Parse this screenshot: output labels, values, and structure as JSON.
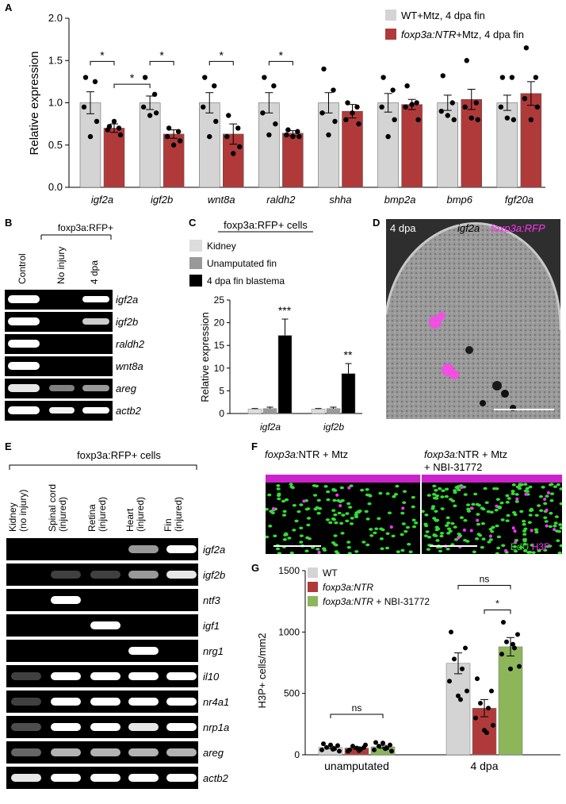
{
  "panels": {
    "A": "A",
    "B": "B",
    "C": "C",
    "D": "D",
    "E": "E",
    "F": "F",
    "G": "G"
  },
  "colors": {
    "wt": "#d4d4d4",
    "ntr": "#b03a3a",
    "nbi": "#8db55a",
    "kidney": "#dddddd",
    "unamp": "#999999",
    "blastema": "#000000",
    "edu": "#33dd33",
    "h3p": "#ff33ff"
  },
  "chart_data": [
    {
      "panel": "A",
      "type": "bar",
      "ylabel": "Relative expression",
      "ylim": [
        0,
        2.0
      ],
      "yticks": [
        "0.0",
        "0.5",
        "1.0",
        "1.5",
        "2.0"
      ],
      "categories": [
        "igf2a",
        "igf2b",
        "wnt8a",
        "raldh2",
        "shha",
        "bmp2a",
        "bmp6",
        "fgf20a"
      ],
      "series": [
        {
          "name": "WT+Mtz, 4 dpa fin",
          "values": [
            1.0,
            1.0,
            1.0,
            1.0,
            1.0,
            1.0,
            1.0,
            1.0
          ],
          "errors": [
            0.13,
            0.08,
            0.12,
            0.12,
            0.12,
            0.11,
            0.09,
            0.09
          ]
        },
        {
          "name_italic": "foxp3a:NTR",
          "name": "+Mtz, 4 dpa fin",
          "values": [
            0.7,
            0.63,
            0.63,
            0.64,
            0.9,
            0.98,
            1.04,
            1.11
          ],
          "errors": [
            0.05,
            0.05,
            0.12,
            0.03,
            0.08,
            0.06,
            0.12,
            0.14
          ]
        }
      ],
      "points": [
        [
          [
            1.3,
            1.25,
            0.95,
            0.78,
            0.6
          ],
          [
            0.72,
            0.7,
            0.68,
            0.62,
            0.78
          ]
        ],
        [
          [
            1.3,
            1.1,
            0.95,
            0.88,
            0.85
          ],
          [
            0.7,
            0.66,
            0.6,
            0.55,
            0.5
          ]
        ],
        [
          [
            1.3,
            1.2,
            0.95,
            0.78,
            0.6
          ],
          [
            0.85,
            0.7,
            0.6,
            0.48,
            0.4
          ]
        ],
        [
          [
            1.3,
            1.2,
            0.88,
            0.75,
            0.62
          ],
          [
            0.68,
            0.66,
            0.62,
            0.6,
            0.6
          ]
        ],
        [
          [
            1.4,
            1.15,
            0.88,
            0.78,
            0.62
          ],
          [
            1.0,
            0.95,
            0.8,
            0.75,
            0.88
          ]
        ],
        [
          [
            1.3,
            1.15,
            0.95,
            0.8,
            0.6
          ],
          [
            1.2,
            1.0,
            0.95,
            0.8,
            0.98
          ]
        ],
        [
          [
            1.32,
            1.0,
            0.9,
            0.8,
            0.85
          ],
          [
            1.5,
            1.0,
            0.95,
            0.8,
            0.82
          ]
        ],
        [
          [
            1.3,
            1.3,
            0.95,
            0.8,
            0.82
          ],
          [
            1.65,
            1.3,
            1.05,
            0.95,
            0.8
          ]
        ]
      ],
      "sig": [
        "*",
        "*",
        "*",
        "*",
        "*"
      ]
    },
    {
      "panel": "C",
      "type": "bar",
      "title": "foxp3a:RFP+ cells",
      "ylabel": "Relative expression",
      "ylim": [
        0,
        25
      ],
      "yticks": [
        "0",
        "5",
        "10",
        "15",
        "20",
        "25"
      ],
      "categories": [
        "igf2a",
        "igf2b"
      ],
      "series": [
        {
          "name": "Kidney",
          "values": [
            1.0,
            1.0
          ],
          "errors": [
            0.1,
            0.1
          ]
        },
        {
          "name": "Unamputated fin",
          "values": [
            1.1,
            1.1
          ],
          "errors": [
            0.3,
            0.3
          ]
        },
        {
          "name": "4 dpa fin blastema",
          "values": [
            17.2,
            8.8
          ],
          "errors": [
            3.6,
            2.2
          ]
        }
      ],
      "sig": [
        "***",
        "**"
      ]
    },
    {
      "panel": "G",
      "type": "bar",
      "ylabel": "H3P+ cells/mm2",
      "ylim": [
        0,
        1500
      ],
      "yticks": [
        "0",
        "500",
        "1000",
        "1500"
      ],
      "categories": [
        "unamputated",
        "4 dpa"
      ],
      "series": [
        {
          "name": "WT",
          "values": [
            60,
            745
          ],
          "errors": [
            10,
            85
          ]
        },
        {
          "name": "foxp3a:NTR",
          "values": [
            55,
            380
          ],
          "errors": [
            10,
            70
          ]
        },
        {
          "name": "foxp3a:NTR + NBI-31772",
          "name_italic": "foxp3a:NTR",
          "name_rest": " + NBI-31772",
          "values": [
            65,
            880
          ],
          "errors": [
            12,
            75
          ]
        }
      ],
      "points": [
        [
          [
            90,
            75,
            60,
            50,
            40,
            30,
            80,
            45
          ],
          [
            40,
            60,
            70,
            45,
            30,
            80,
            55,
            35
          ],
          [
            100,
            80,
            70,
            55,
            40,
            30,
            95,
            50
          ]
        ],
        [
          [
            1000,
            870,
            780,
            700,
            600,
            520,
            480,
            450
          ],
          [
            620,
            520,
            420,
            380,
            300,
            240,
            200,
            180
          ],
          [
            1080,
            980,
            920,
            870,
            820,
            720,
            700,
            900
          ]
        ]
      ],
      "sig": [
        "ns",
        "ns",
        "*"
      ]
    }
  ],
  "gelB": {
    "header": "foxp3a:RFP+",
    "lanes": [
      "Control",
      "No injury",
      "4 dpa"
    ],
    "genes": [
      "igf2a",
      "igf2b",
      "raldh2",
      "wnt8a",
      "areg",
      "actb2"
    ]
  },
  "gelE": {
    "header": "foxp3a:RFP+ cells",
    "lanes": [
      "Kidney\n(no injury)",
      "Spinal cord\n(injured)",
      "Retina\n(injured)",
      "Heart\n(injured)",
      "Fin\n(injured)"
    ],
    "genes": [
      "igf2a",
      "igf2b",
      "ntf3",
      "igf1",
      "nrg1",
      "il10",
      "nr4a1",
      "nrp1a",
      "areg",
      "actb2"
    ]
  },
  "panelD": {
    "time": "4 dpa",
    "label1": "igf2a",
    "label2": "foxp3a:RFP"
  },
  "panelF": {
    "left_title_i": "foxp3a:",
    "left_title": "NTR + Mtz",
    "right_title_i": "foxp3a:",
    "right_title": "NTR + Mtz",
    "right_title2": "+ NBI-31772",
    "edu": "EdU",
    "h3p": "H3P"
  }
}
